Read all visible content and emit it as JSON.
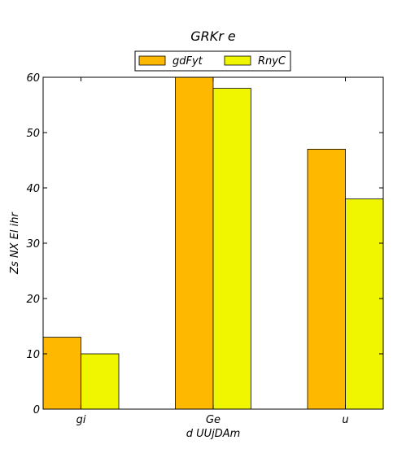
{
  "chart_data": {
    "type": "bar",
    "title": "GRKr e",
    "xlabel": "d UUjDAm",
    "ylabel": "Zs NX El ihr",
    "categories": [
      "gi",
      "Ge",
      "u"
    ],
    "series": [
      {
        "name": "gdFyt",
        "values": [
          13,
          60,
          47
        ],
        "color": "#ffb800"
      },
      {
        "name": "RnyC",
        "values": [
          10,
          58,
          38
        ],
        "color": "#f0f500"
      }
    ],
    "ylim": [
      0,
      60
    ],
    "yticks": [
      "0",
      "10",
      "20",
      "30",
      "40",
      "50",
      "60"
    ],
    "legend_position": "top-center",
    "grid": false
  }
}
